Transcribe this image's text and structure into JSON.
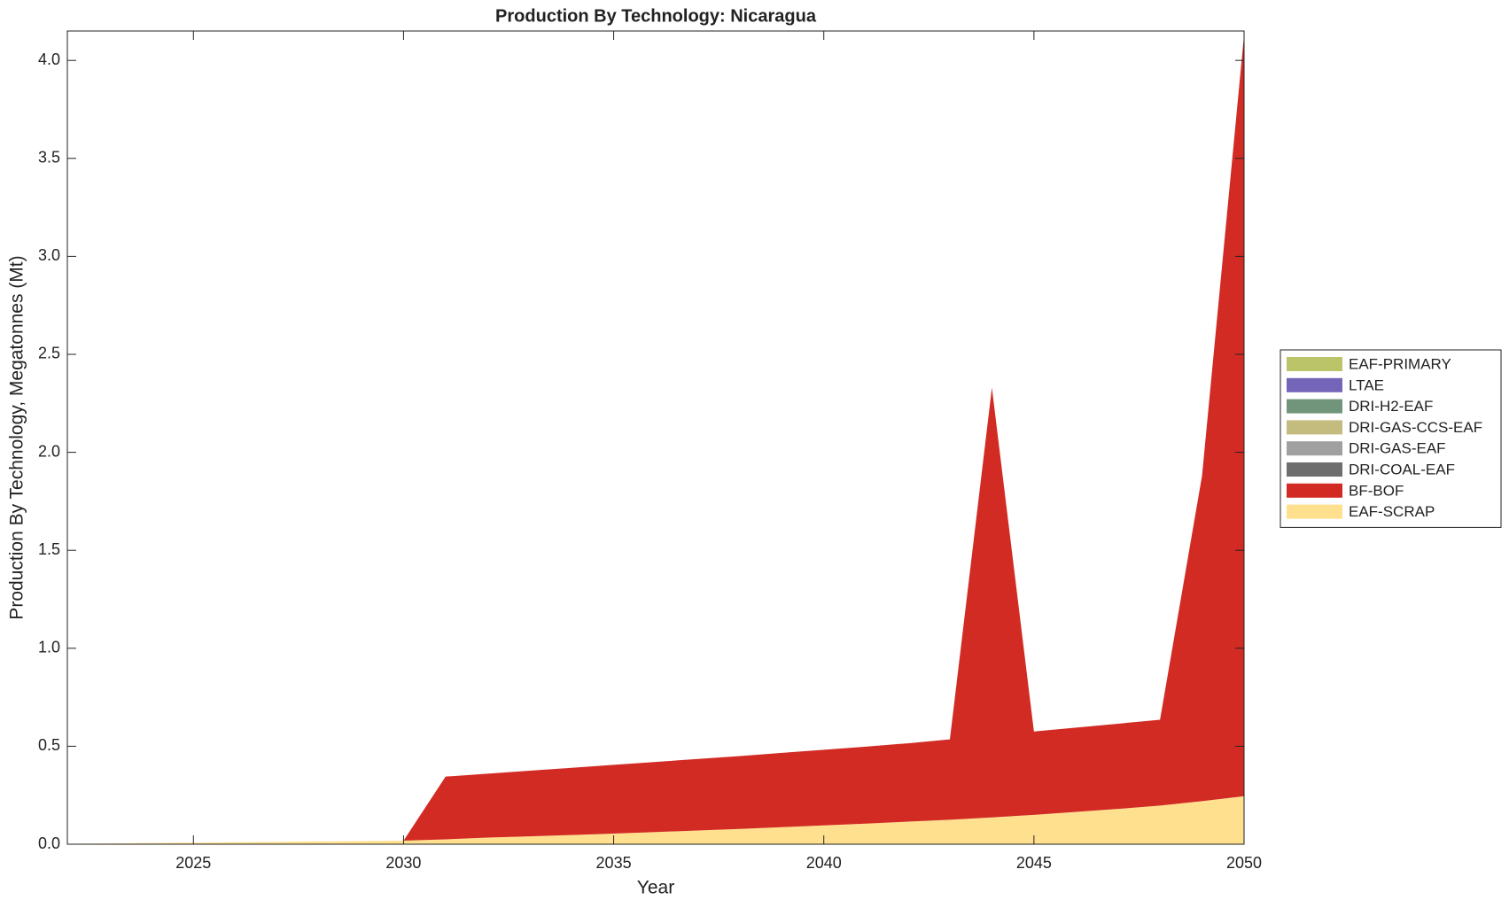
{
  "chart_data": {
    "type": "stacked-area",
    "title": "Production By Technology: Nicaragua",
    "x_label": "Year",
    "y_label": "Production By Technology, Megatonnes (Mt)",
    "x": [
      2022,
      2023,
      2024,
      2025,
      2026,
      2027,
      2028,
      2029,
      2030,
      2031,
      2032,
      2033,
      2034,
      2035,
      2036,
      2037,
      2038,
      2039,
      2040,
      2041,
      2042,
      2043,
      2044,
      2045,
      2046,
      2047,
      2048,
      2049,
      2050
    ],
    "xlim": [
      2022,
      2050
    ],
    "xticks": [
      2025,
      2030,
      2035,
      2040,
      2045,
      2050
    ],
    "ylim": [
      0,
      4.15
    ],
    "yticks": [
      {
        "value": 0,
        "label": "0.0"
      },
      {
        "value": 0.5,
        "label": "0.5"
      },
      {
        "value": 1,
        "label": "1.0"
      },
      {
        "value": 1.5,
        "label": "1.5"
      },
      {
        "value": 2,
        "label": "2.0"
      },
      {
        "value": 2.5,
        "label": "2.5"
      },
      {
        "value": 3,
        "label": "3.0"
      },
      {
        "value": 3.5,
        "label": "3.5"
      },
      {
        "value": 4,
        "label": "4.0"
      }
    ],
    "legend": "right",
    "series": [
      {
        "name": "EAF-PRIMARY",
        "color": "#bcc46a",
        "values": [
          0,
          0,
          0,
          0,
          0,
          0,
          0,
          0,
          0,
          0,
          0,
          0,
          0,
          0,
          0,
          0,
          0,
          0,
          0,
          0,
          0,
          0,
          0,
          0,
          0,
          0,
          0,
          0,
          0
        ]
      },
      {
        "name": "LTAE",
        "color": "#7465b8",
        "values": [
          0,
          0,
          0,
          0,
          0,
          0,
          0,
          0,
          0,
          0,
          0,
          0,
          0,
          0,
          0,
          0,
          0,
          0,
          0,
          0,
          0,
          0,
          0,
          0,
          0,
          0,
          0,
          0,
          0
        ]
      },
      {
        "name": "DRI-H2-EAF",
        "color": "#71957a",
        "values": [
          0,
          0,
          0,
          0,
          0,
          0,
          0,
          0,
          0,
          0,
          0,
          0,
          0,
          0,
          0,
          0,
          0,
          0,
          0,
          0,
          0,
          0,
          0,
          0,
          0,
          0,
          0,
          0,
          0
        ]
      },
      {
        "name": "DRI-GAS-CCS-EAF",
        "color": "#c4bb7e",
        "values": [
          0,
          0,
          0,
          0,
          0,
          0,
          0,
          0,
          0,
          0,
          0,
          0,
          0,
          0,
          0,
          0,
          0,
          0,
          0,
          0,
          0,
          0,
          0,
          0,
          0,
          0,
          0,
          0,
          0
        ]
      },
      {
        "name": "DRI-GAS-EAF",
        "color": "#a0a0a0",
        "values": [
          0,
          0,
          0,
          0,
          0,
          0,
          0,
          0,
          0,
          0,
          0,
          0,
          0,
          0,
          0,
          0,
          0,
          0,
          0,
          0,
          0,
          0,
          0,
          0,
          0,
          0,
          0,
          0,
          0
        ]
      },
      {
        "name": "DRI-COAL-EAF",
        "color": "#6e6e6e",
        "values": [
          0,
          0,
          0,
          0,
          0,
          0,
          0,
          0,
          0,
          0,
          0,
          0,
          0,
          0,
          0,
          0,
          0,
          0,
          0,
          0,
          0,
          0,
          0,
          0,
          0,
          0,
          0,
          0,
          0
        ]
      },
      {
        "name": "BF-BOF",
        "color": "#d22b24",
        "values": [
          0,
          0,
          0,
          0,
          0,
          0,
          0,
          0,
          0,
          0.32,
          0.326,
          0.335,
          0.343,
          0.351,
          0.358,
          0.365,
          0.372,
          0.379,
          0.386,
          0.393,
          0.4,
          0.41,
          2.193,
          0.425,
          0.43,
          0.435,
          0.438,
          1.66,
          3.885
        ]
      },
      {
        "name": "EAF-SCRAP",
        "color": "#fee08f",
        "values": [
          0.002,
          0.004,
          0.006,
          0.008,
          0.01,
          0.012,
          0.014,
          0.016,
          0.018,
          0.025,
          0.034,
          0.04,
          0.047,
          0.054,
          0.062,
          0.07,
          0.078,
          0.087,
          0.096,
          0.105,
          0.115,
          0.125,
          0.137,
          0.15,
          0.165,
          0.18,
          0.197,
          0.22,
          0.245
        ]
      }
    ]
  }
}
